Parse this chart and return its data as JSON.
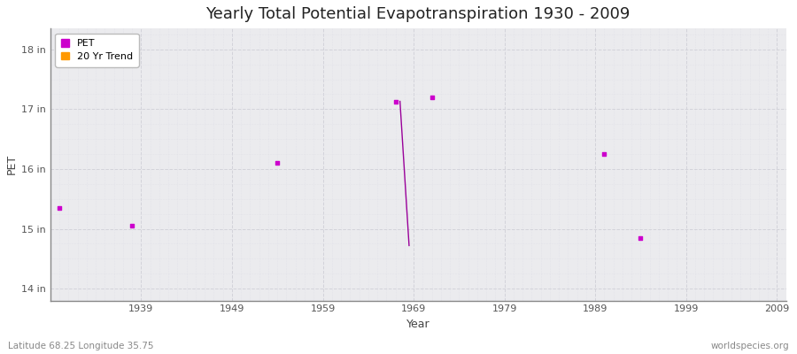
{
  "title": "Yearly Total Potential Evapotranspiration 1930 - 2009",
  "xlabel": "Year",
  "ylabel": "PET",
  "plot_bg_color": "#ebebee",
  "fig_bg_color": "#ffffff",
  "grid_major_color": "#d0d0d8",
  "grid_minor_color": "#e0e0e8",
  "xlim": [
    1929,
    2010
  ],
  "ylim": [
    13.8,
    18.35
  ],
  "xticks": [
    1939,
    1949,
    1959,
    1969,
    1979,
    1989,
    1999,
    2009
  ],
  "yticks": [
    14,
    15,
    16,
    17,
    18
  ],
  "ytick_labels": [
    "14 in",
    "15 in",
    "16 in",
    "17 in",
    "18 in"
  ],
  "data_points": [
    {
      "year": 1930,
      "value": 15.35
    },
    {
      "year": 1938,
      "value": 15.05
    },
    {
      "year": 1954,
      "value": 16.1
    },
    {
      "year": 1967,
      "value": 17.13
    },
    {
      "year": 1971,
      "value": 17.2
    },
    {
      "year": 1990,
      "value": 16.25
    },
    {
      "year": 1994,
      "value": 14.85
    }
  ],
  "trend_line": [
    {
      "year": 1967.5,
      "value": 17.13
    },
    {
      "year": 1968.5,
      "value": 14.72
    }
  ],
  "pet_color": "#cc00cc",
  "trend_color": "#ff9900",
  "trend_line_color": "#990099",
  "dot_size": 6,
  "footer_left": "Latitude 68.25 Longitude 35.75",
  "footer_right": "worldspecies.org",
  "title_fontsize": 13,
  "axis_label_fontsize": 9,
  "tick_fontsize": 8,
  "footer_fontsize": 7.5
}
